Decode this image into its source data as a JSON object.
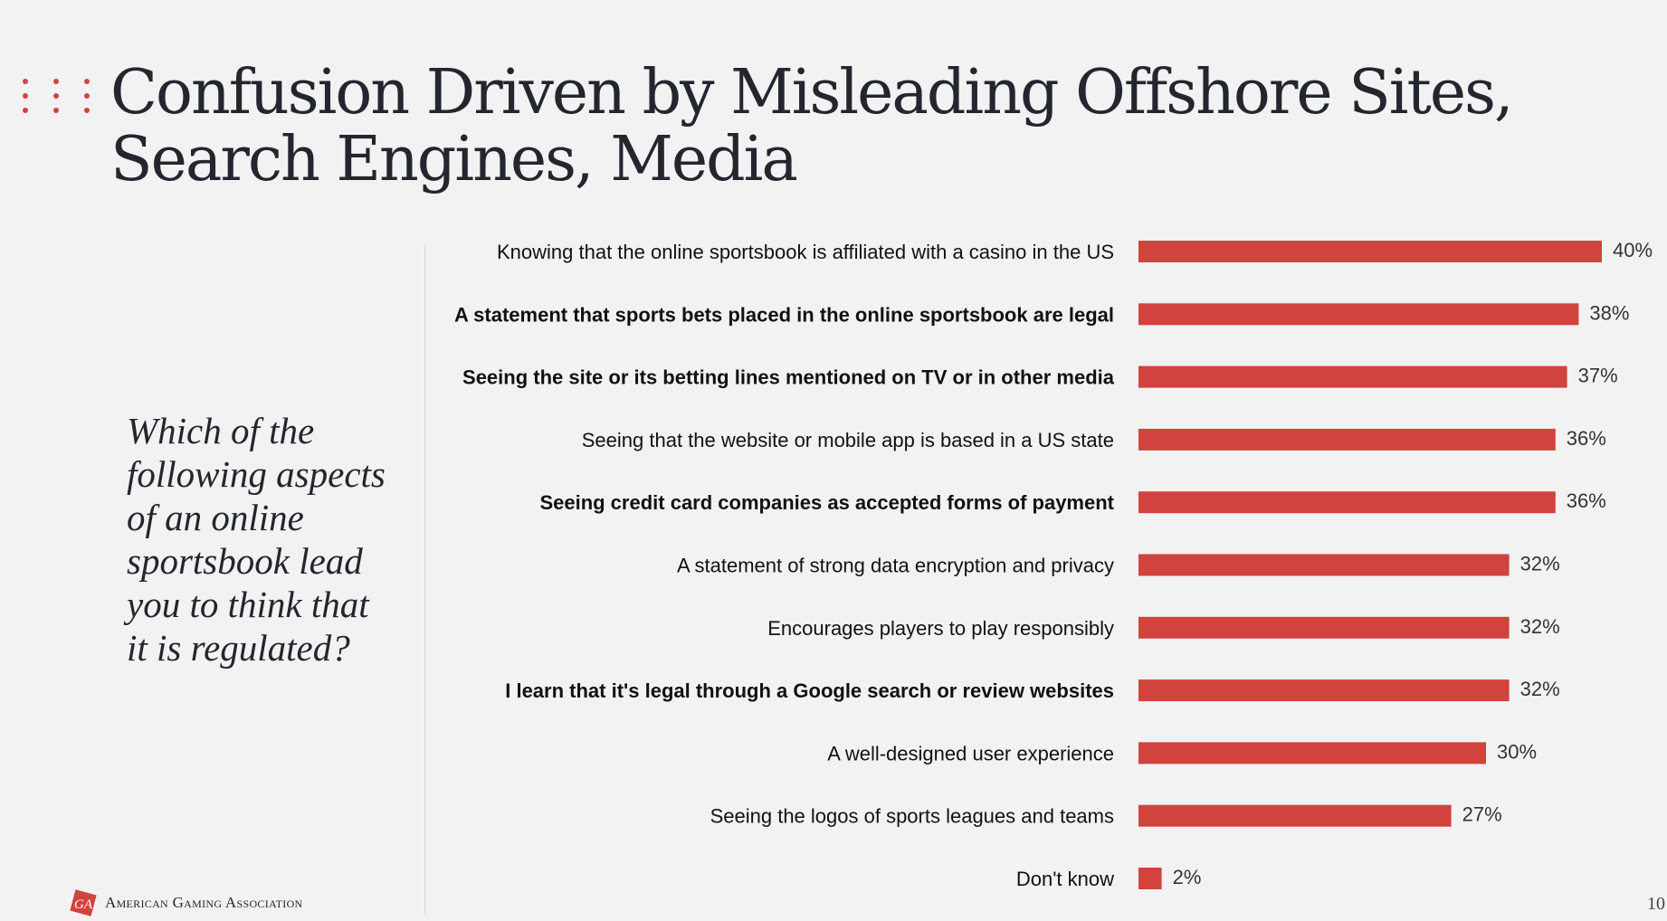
{
  "slide": {
    "title": "Confusion Driven by Misleading Offshore Sites, Search Engines, Media",
    "question": "Which of the following aspects of an online sportsbook lead you to think that it is regulated?",
    "logo_text": "American Gaming Association",
    "page_number": "10"
  },
  "colors": {
    "bar": "#d0433f",
    "accent_dots": "#d0433f",
    "text": "#23262e"
  },
  "icons": {
    "decoration": "three-dot-columns",
    "logo": "aga-logo-icon"
  },
  "chart_data": {
    "type": "bar",
    "orientation": "horizontal",
    "categories": [
      "Knowing that the online sportsbook is affiliated with a casino in the US",
      "A statement that sports bets placed in the online sportsbook are legal",
      "Seeing the site or its betting lines mentioned on TV or in other media",
      "Seeing that the website or mobile app is based in a US state",
      "Seeing credit card companies as accepted forms of payment",
      "A statement of strong data encryption and privacy",
      "Encourages players to play responsibly",
      "I learn that it's legal through a Google search or review websites",
      "A well-designed user experience",
      "Seeing the logos of sports leagues and teams",
      "Don't know"
    ],
    "values": [
      40,
      38,
      37,
      36,
      36,
      32,
      32,
      32,
      30,
      27,
      2
    ],
    "value_labels": [
      "40%",
      "38%",
      "37%",
      "36%",
      "36%",
      "32%",
      "32%",
      "32%",
      "30%",
      "27%",
      "2%"
    ],
    "bold_categories": [
      false,
      true,
      true,
      false,
      true,
      false,
      false,
      true,
      false,
      false,
      false
    ],
    "xlim": [
      0,
      40
    ],
    "grid": false,
    "legend": "none"
  }
}
